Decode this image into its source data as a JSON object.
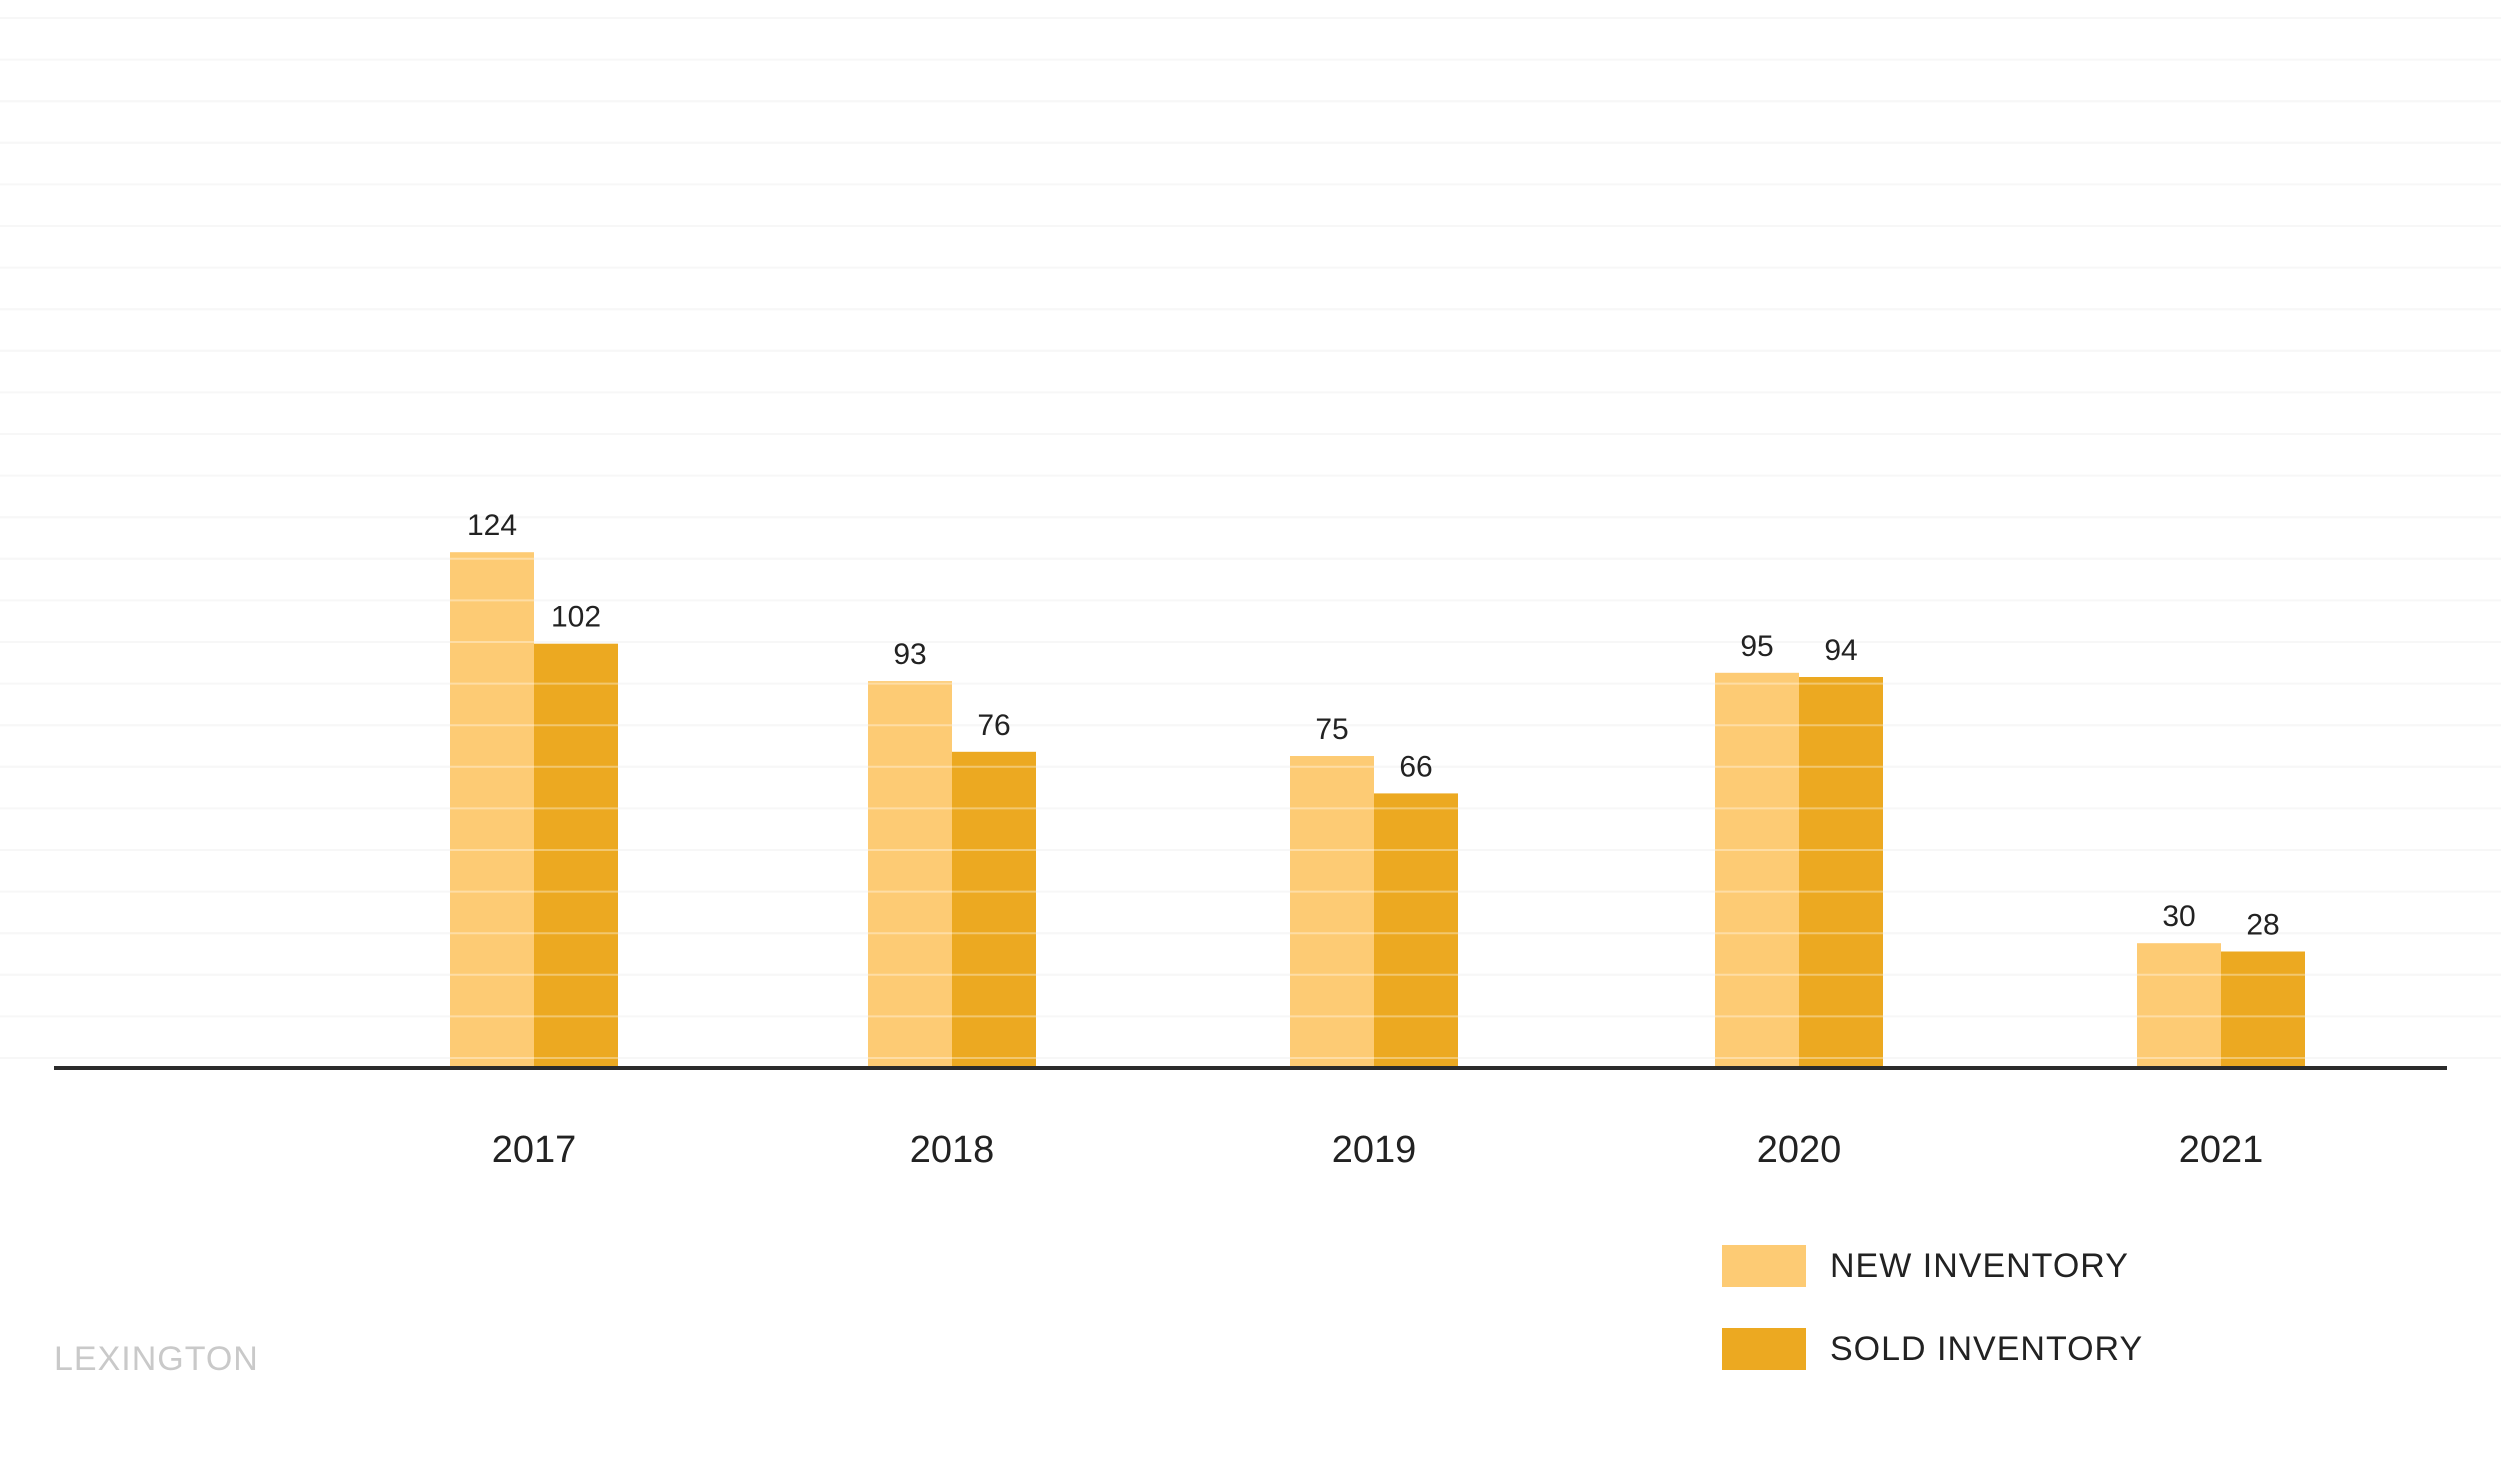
{
  "chart_data": {
    "type": "bar",
    "categories": [
      "2017",
      "2018",
      "2019",
      "2020",
      "2021"
    ],
    "series": [
      {
        "name": "NEW INVENTORY",
        "values": [
          124,
          93,
          75,
          95,
          30
        ],
        "color": "#fdcb74"
      },
      {
        "name": "SOLD INVENTORY",
        "values": [
          102,
          76,
          66,
          94,
          28
        ],
        "color": "#eca921"
      }
    ],
    "title": "",
    "xlabel": "",
    "ylabel": "",
    "ylim": [
      0,
      250
    ],
    "grid": true,
    "legend_position": "bottom-right"
  },
  "brand": {
    "watermark": "LEXINGTON"
  },
  "colors": {
    "axis": "#2b2b2b",
    "grid": "#f3f3f3",
    "text": "#222222",
    "watermark": "#c9c9c9"
  }
}
